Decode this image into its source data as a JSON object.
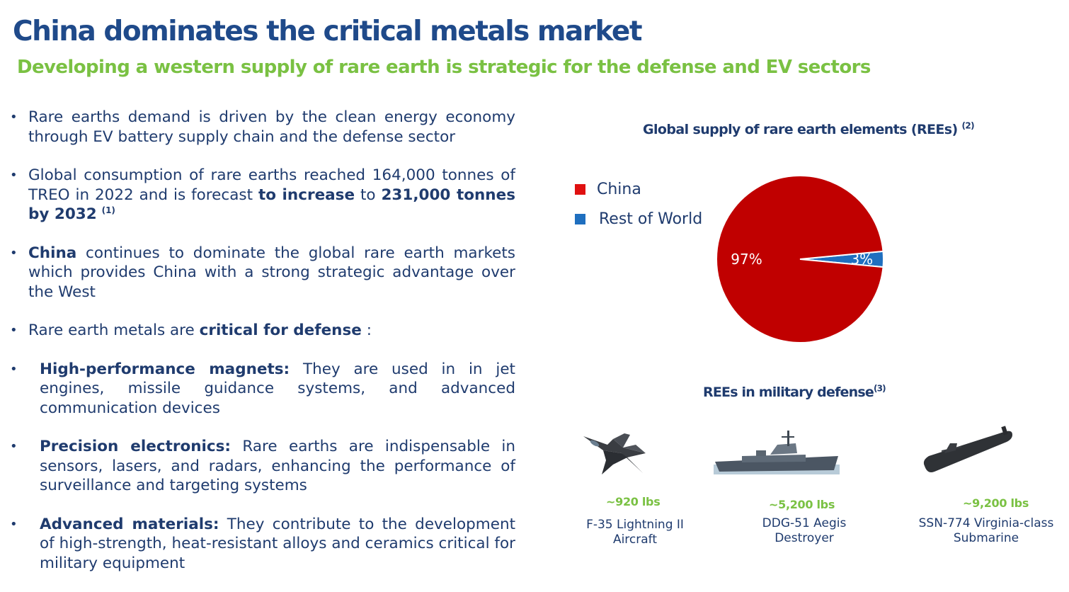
{
  "header": {
    "title": "China dominates the critical metals market",
    "subtitle": "Developing a western supply of rare earth is strategic for the defense and EV sectors"
  },
  "bullets": {
    "b1": "Rare earths demand is driven by the clean energy economy through EV battery supply chain and the defense sector",
    "b2_pre": "Global consumption of rare earths reached 164,000 tonnes of TREO in 2022 and is forecast ",
    "b2_bold1": "to increase",
    "b2_mid": " to ",
    "b2_bold2": "231,000 tonnes by 2032",
    "b2_note": "(1)",
    "b3_bold": "China",
    "b3_rest": " continues to dominate the  global rare earth markets which provides China with a strong strategic advantage over the West",
    "b4_pre": "Rare earth metals are ",
    "b4_bold": "critical for defense",
    "b4_post": " :",
    "b5_bold": "High-performance magnets:",
    "b5_rest": " They are used in in jet engines, missile guidance systems, and advanced communication devices",
    "b6_bold": "Precision electronics:",
    "b6_rest": " Rare earths are indispensable in sensors, lasers, and radars, enhancing the performance of surveillance and targeting systems",
    "b7_bold": "Advanced materials:",
    "b7_rest": " They contribute to the development of high-strength, heat-resistant alloys and ceramics critical for military equipment"
  },
  "chart_data": {
    "type": "pie",
    "title": "Global supply of rare earth elements (REEs)",
    "title_note": "(2)",
    "legend_position": "left",
    "slices": [
      {
        "name": "China",
        "value": 97,
        "label": "97%",
        "color": "#c00000"
      },
      {
        "name": "Rest of World",
        "value": 3,
        "label": "3%",
        "color": "#1f6fbf"
      }
    ]
  },
  "legend_colors": {
    "china": "#e01010",
    "row": "#1f6fbf"
  },
  "military": {
    "title": "REEs in military defense",
    "title_note": "(3)",
    "items": [
      {
        "icon": "jet-icon",
        "weight": "~920 lbs",
        "name1": "F-35 Lightning II",
        "name2": "Aircraft"
      },
      {
        "icon": "destroyer-ship-icon",
        "weight": "~5,200 lbs",
        "name1": "DDG-51 Aegis",
        "name2": "Destroyer"
      },
      {
        "icon": "submarine-icon",
        "weight": "~9,200 lbs",
        "name1": "SSN-774 Virginia-class",
        "name2": "Submarine"
      }
    ]
  }
}
